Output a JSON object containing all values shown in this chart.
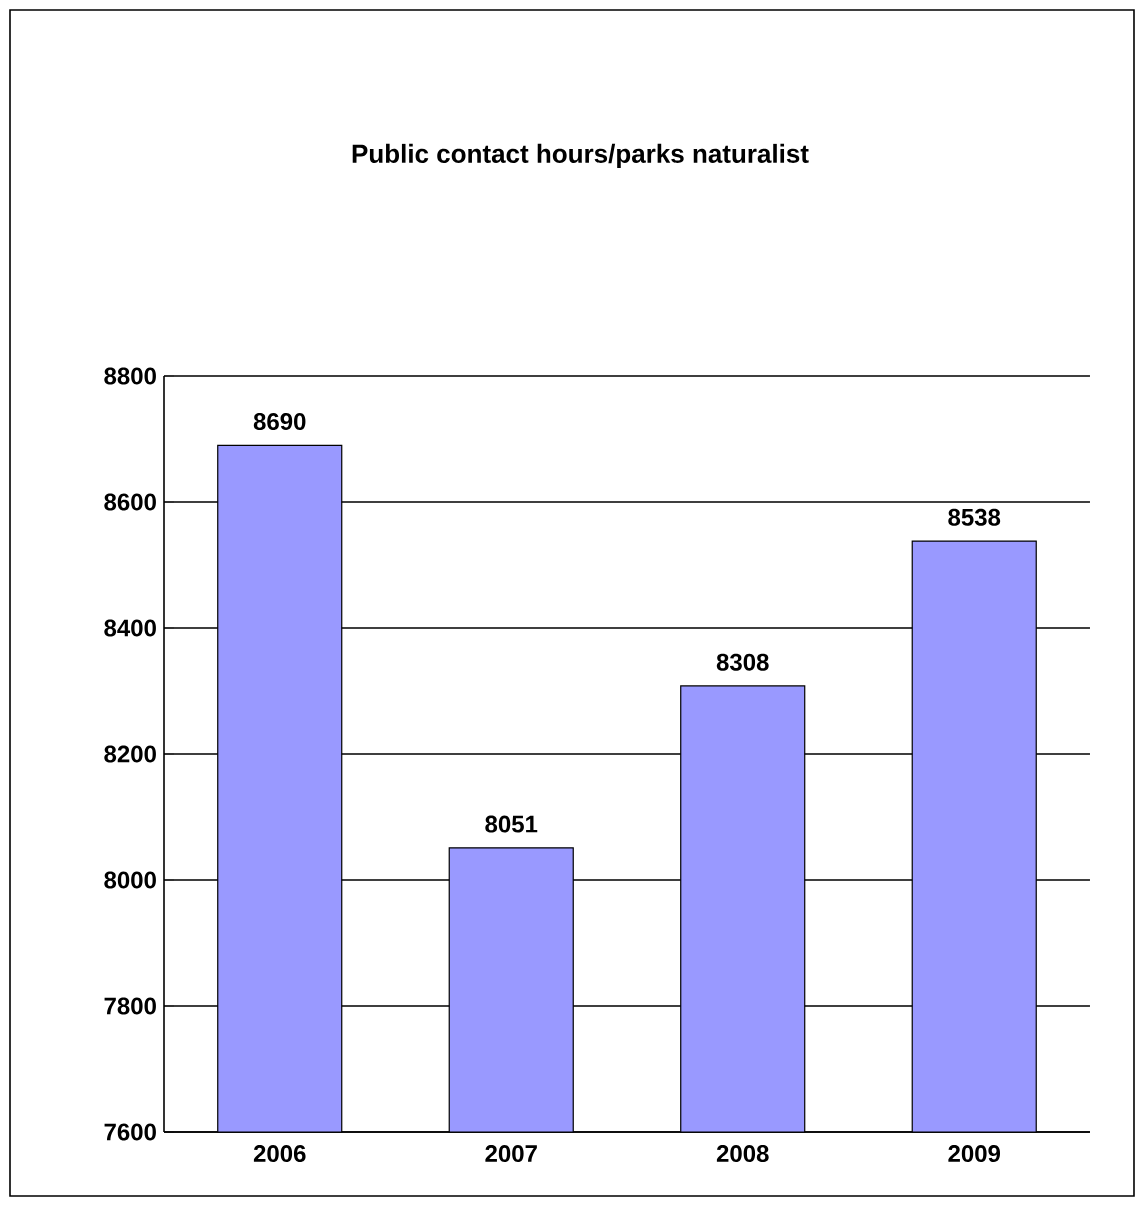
{
  "chart_data": {
    "type": "bar",
    "title": "Public contact hours/parks naturalist",
    "categories": [
      "2006",
      "2007",
      "2008",
      "2009"
    ],
    "values": [
      8690,
      8051,
      8308,
      8538
    ],
    "color": "#9999ff",
    "ylim": [
      7600,
      8800
    ],
    "yticks": [
      7600,
      7800,
      8000,
      8200,
      8400,
      8600,
      8800
    ],
    "grid": "y",
    "data_labels": true
  }
}
